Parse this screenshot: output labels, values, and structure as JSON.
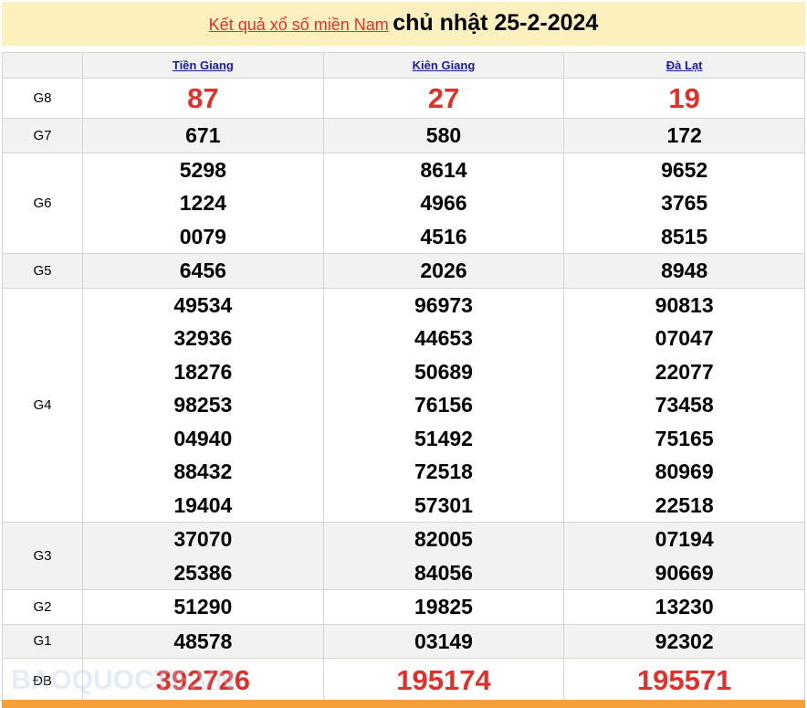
{
  "header": {
    "title_link": "Kết quả xổ số miền Nam",
    "title_date": "chủ nhật 25-2-2024"
  },
  "provinces": [
    "Tiền Giang",
    "Kiên Giang",
    "Đà Lạt"
  ],
  "prizes": [
    {
      "label": "G8",
      "style": "big",
      "values": [
        [
          "87"
        ],
        [
          "27"
        ],
        [
          "19"
        ]
      ]
    },
    {
      "label": "G7",
      "values": [
        [
          "671"
        ],
        [
          "580"
        ],
        [
          "172"
        ]
      ]
    },
    {
      "label": "G6",
      "values": [
        [
          "5298",
          "1224",
          "0079"
        ],
        [
          "8614",
          "4966",
          "4516"
        ],
        [
          "9652",
          "3765",
          "8515"
        ]
      ]
    },
    {
      "label": "G5",
      "values": [
        [
          "6456"
        ],
        [
          "2026"
        ],
        [
          "8948"
        ]
      ]
    },
    {
      "label": "G4",
      "values": [
        [
          "49534",
          "32936",
          "18276",
          "98253",
          "04940",
          "88432",
          "19404"
        ],
        [
          "96973",
          "44653",
          "50689",
          "76156",
          "51492",
          "72518",
          "57301"
        ],
        [
          "90813",
          "07047",
          "22077",
          "73458",
          "75165",
          "80969",
          "22518"
        ]
      ]
    },
    {
      "label": "G3",
      "values": [
        [
          "37070",
          "25386"
        ],
        [
          "82005",
          "84056"
        ],
        [
          "07194",
          "90669"
        ]
      ]
    },
    {
      "label": "G2",
      "values": [
        [
          "51290"
        ],
        [
          "19825"
        ],
        [
          "13230"
        ]
      ]
    },
    {
      "label": "G1",
      "values": [
        [
          "48578"
        ],
        [
          "03149"
        ],
        [
          "92302"
        ]
      ]
    },
    {
      "label": "ĐB",
      "style": "db",
      "values": [
        [
          "392726"
        ],
        [
          "195174"
        ],
        [
          "195571"
        ]
      ]
    }
  ],
  "watermark": "BAOQUOCTE.VN",
  "colors": {
    "title_bg": "#fdf0bf",
    "accent_red": "#e0302a",
    "link_blue": "#1a1aa6",
    "bottom_bar": "#f4a03a"
  }
}
